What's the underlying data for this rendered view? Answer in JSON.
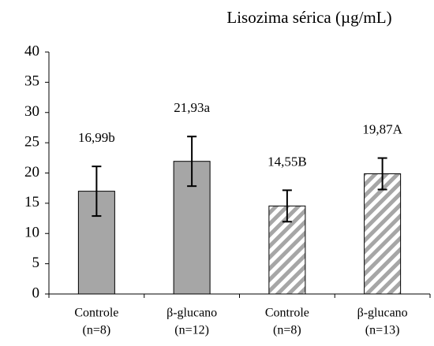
{
  "chart_data": {
    "type": "bar",
    "title": "Lisozima sérica (µg/mL)",
    "categories": [
      [
        "Controle",
        "(n=8)"
      ],
      [
        "β-glucano",
        "(n=12)"
      ],
      [
        "Controle",
        "(n=8)"
      ],
      [
        "β-glucano",
        "(n=13)"
      ]
    ],
    "values": [
      16.99,
      21.93,
      14.55,
      19.87
    ],
    "value_labels": [
      "16,99b",
      "21,93a",
      "14,55B",
      "19,87A"
    ],
    "errors": [
      4.1,
      4.1,
      2.6,
      2.6
    ],
    "color": "#a6a6a6",
    "patterns": [
      "solid",
      "solid",
      "hatch",
      "hatch"
    ],
    "ylim": [
      0,
      40
    ],
    "yticks": [
      0,
      5,
      10,
      15,
      20,
      25,
      30,
      35,
      40
    ]
  }
}
